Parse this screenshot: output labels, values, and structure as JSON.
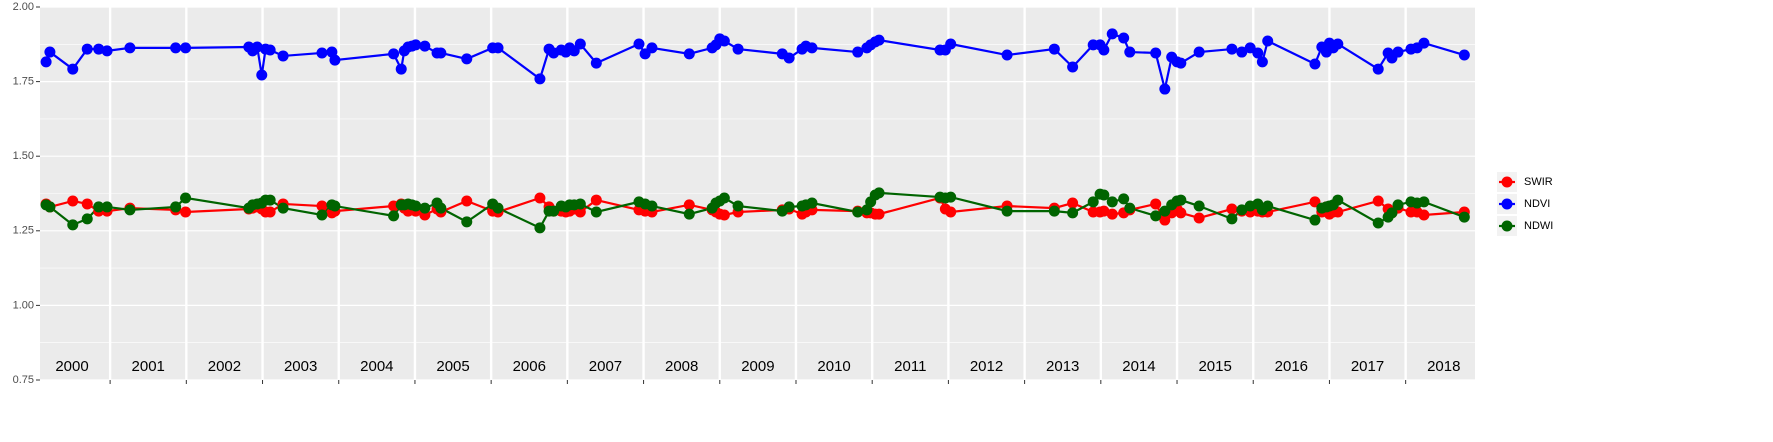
{
  "chart_data": {
    "type": "line",
    "x": [
      2000.16,
      2000.21,
      2000.51,
      2000.7,
      2000.85,
      2000.96,
      2001.26,
      2001.86,
      2001.99,
      2002.82,
      2002.87,
      2002.93,
      2002.99,
      2003.04,
      2003.1,
      2003.27,
      2003.78,
      2003.91,
      2003.95,
      2004.72,
      2004.82,
      2004.86,
      2004.91,
      2004.96,
      2005.01,
      2005.13,
      2005.29,
      2005.34,
      2005.68,
      2006.02,
      2006.09,
      2006.64,
      2006.76,
      2006.82,
      2006.92,
      2006.98,
      2007.03,
      2007.09,
      2007.17,
      2007.38,
      2007.94,
      2008.02,
      2008.11,
      2008.6,
      2008.9,
      2008.95,
      2009.0,
      2009.06,
      2009.24,
      2009.82,
      2009.91,
      2010.08,
      2010.13,
      2010.21,
      2010.81,
      2010.93,
      2010.98,
      2011.04,
      2011.09,
      2011.89,
      2011.96,
      2012.03,
      2012.77,
      2013.39,
      2013.63,
      2013.9,
      2013.99,
      2014.04,
      2014.15,
      2014.3,
      2014.38,
      2014.72,
      2014.84,
      2014.93,
      2015.0,
      2015.05,
      2015.29,
      2015.72,
      2015.85,
      2015.96,
      2016.06,
      2016.12,
      2016.19,
      2016.81,
      2016.9,
      2016.96,
      2017.0,
      2017.05,
      2017.11,
      2017.64,
      2017.77,
      2017.82,
      2017.9,
      2018.07,
      2018.15,
      2018.24,
      2018.77
    ],
    "series": [
      {
        "name": "SWIR",
        "color": "#ff0000",
        "values": [
          1.34,
          1.33,
          1.35,
          1.34,
          1.316,
          1.316,
          1.326,
          1.32,
          1.313,
          1.323,
          1.326,
          1.33,
          1.323,
          1.313,
          1.313,
          1.34,
          1.333,
          1.31,
          1.316,
          1.333,
          1.34,
          1.326,
          1.316,
          1.32,
          1.316,
          1.303,
          1.323,
          1.313,
          1.35,
          1.316,
          1.313,
          1.36,
          1.33,
          1.316,
          1.316,
          1.313,
          1.316,
          1.323,
          1.313,
          1.353,
          1.32,
          1.316,
          1.313,
          1.337,
          1.32,
          1.313,
          1.306,
          1.303,
          1.313,
          1.32,
          1.323,
          1.306,
          1.313,
          1.32,
          1.316,
          1.31,
          1.31,
          1.306,
          1.306,
          1.36,
          1.323,
          1.313,
          1.333,
          1.326,
          1.343,
          1.313,
          1.313,
          1.316,
          1.306,
          1.31,
          1.32,
          1.34,
          1.286,
          1.31,
          1.323,
          1.31,
          1.293,
          1.323,
          1.316,
          1.313,
          1.316,
          1.313,
          1.313,
          1.347,
          1.313,
          1.33,
          1.306,
          1.313,
          1.313,
          1.35,
          1.323,
          1.31,
          1.326,
          1.313,
          1.313,
          1.303,
          1.313
        ]
      },
      {
        "name": "NDVI",
        "color": "#0000ff",
        "values": [
          1.816,
          1.849,
          1.792,
          1.859,
          1.859,
          1.853,
          1.863,
          1.863,
          1.863,
          1.866,
          1.853,
          1.866,
          1.772,
          1.859,
          1.856,
          1.836,
          1.846,
          1.849,
          1.822,
          1.843,
          1.792,
          1.853,
          1.866,
          1.869,
          1.873,
          1.869,
          1.846,
          1.846,
          1.826,
          1.863,
          1.863,
          1.759,
          1.859,
          1.846,
          1.856,
          1.849,
          1.863,
          1.853,
          1.876,
          1.812,
          1.876,
          1.843,
          1.863,
          1.843,
          1.863,
          1.873,
          1.893,
          1.886,
          1.859,
          1.843,
          1.829,
          1.859,
          1.869,
          1.863,
          1.849,
          1.863,
          1.873,
          1.883,
          1.889,
          1.856,
          1.856,
          1.876,
          1.839,
          1.859,
          1.799,
          1.873,
          1.873,
          1.856,
          1.91,
          1.896,
          1.849,
          1.846,
          1.725,
          1.832,
          1.816,
          1.812,
          1.849,
          1.859,
          1.849,
          1.863,
          1.846,
          1.816,
          1.886,
          1.809,
          1.866,
          1.849,
          1.879,
          1.863,
          1.876,
          1.792,
          1.846,
          1.829,
          1.849,
          1.859,
          1.863,
          1.879,
          1.839
        ]
      },
      {
        "name": "NDWI",
        "color": "#006400",
        "values": [
          1.337,
          1.33,
          1.27,
          1.29,
          1.33,
          1.33,
          1.32,
          1.33,
          1.36,
          1.326,
          1.337,
          1.34,
          1.343,
          1.353,
          1.353,
          1.326,
          1.303,
          1.337,
          1.333,
          1.3,
          1.337,
          1.337,
          1.34,
          1.337,
          1.333,
          1.326,
          1.343,
          1.326,
          1.28,
          1.34,
          1.326,
          1.26,
          1.316,
          1.316,
          1.333,
          1.33,
          1.337,
          1.337,
          1.34,
          1.313,
          1.347,
          1.34,
          1.333,
          1.306,
          1.326,
          1.343,
          1.35,
          1.36,
          1.333,
          1.316,
          1.33,
          1.333,
          1.337,
          1.343,
          1.313,
          1.32,
          1.347,
          1.37,
          1.377,
          1.363,
          1.36,
          1.363,
          1.316,
          1.316,
          1.31,
          1.347,
          1.373,
          1.37,
          1.347,
          1.357,
          1.326,
          1.3,
          1.316,
          1.337,
          1.35,
          1.353,
          1.333,
          1.29,
          1.32,
          1.333,
          1.34,
          1.32,
          1.333,
          1.286,
          1.326,
          1.33,
          1.333,
          1.337,
          1.353,
          1.276,
          1.296,
          1.31,
          1.337,
          1.347,
          1.343,
          1.347,
          1.296
        ]
      }
    ],
    "xlim": [
      2000.08,
      2018.91
    ],
    "xticks": [
      2001,
      2002,
      2003,
      2004,
      2005,
      2006,
      2007,
      2008,
      2009,
      2010,
      2011,
      2012,
      2013,
      2014,
      2015,
      2016,
      2017,
      2018
    ],
    "ylim": [
      0.75,
      2.0
    ],
    "yticks": [
      {
        "value": 0.75,
        "label": "0.75"
      },
      {
        "value": 1.0,
        "label": "1.00"
      },
      {
        "value": 1.25,
        "label": "1.25"
      },
      {
        "value": 1.5,
        "label": "1.50"
      },
      {
        "value": 1.75,
        "label": "1.75"
      },
      {
        "value": 2.0,
        "label": "2.00"
      }
    ],
    "year_labels": [
      {
        "x": 2000.5,
        "text": "2000"
      },
      {
        "x": 2001.5,
        "text": "2001"
      },
      {
        "x": 2002.5,
        "text": "2002"
      },
      {
        "x": 2003.5,
        "text": "2003"
      },
      {
        "x": 2004.5,
        "text": "2004"
      },
      {
        "x": 2005.5,
        "text": "2005"
      },
      {
        "x": 2006.5,
        "text": "2006"
      },
      {
        "x": 2007.5,
        "text": "2007"
      },
      {
        "x": 2008.5,
        "text": "2008"
      },
      {
        "x": 2009.5,
        "text": "2009"
      },
      {
        "x": 2010.5,
        "text": "2010"
      },
      {
        "x": 2011.5,
        "text": "2011"
      },
      {
        "x": 2012.5,
        "text": "2012"
      },
      {
        "x": 2013.5,
        "text": "2013"
      },
      {
        "x": 2014.5,
        "text": "2014"
      },
      {
        "x": 2015.5,
        "text": "2015"
      },
      {
        "x": 2016.5,
        "text": "2016"
      },
      {
        "x": 2017.5,
        "text": "2017"
      },
      {
        "x": 2018.5,
        "text": "2018"
      }
    ],
    "grid": true,
    "legend": "right"
  }
}
